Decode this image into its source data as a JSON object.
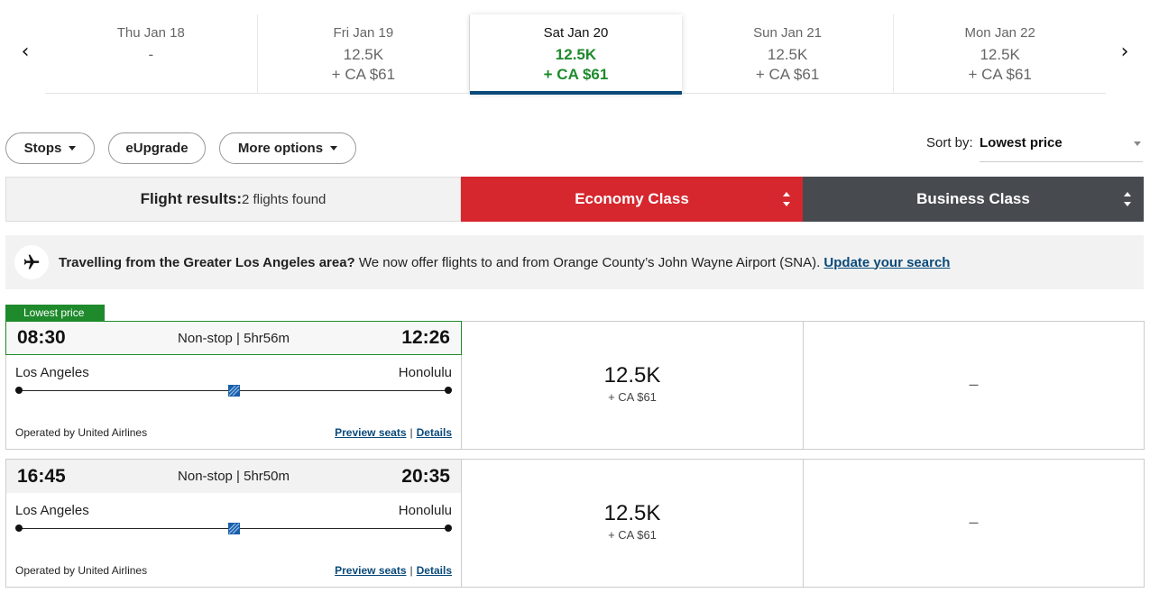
{
  "dates": [
    {
      "day": "Thu Jan 18",
      "price": "-",
      "fee": ""
    },
    {
      "day": "Fri Jan 19",
      "price": "12.5K",
      "fee": "+ CA $61"
    },
    {
      "day": "Sat Jan 20",
      "price": "12.5K",
      "fee": "+ CA $61"
    },
    {
      "day": "Sun Jan 21",
      "price": "12.5K",
      "fee": "+ CA $61"
    },
    {
      "day": "Mon Jan 22",
      "price": "12.5K",
      "fee": "+ CA $61"
    }
  ],
  "nav": {
    "prev": "‹",
    "next": "›"
  },
  "filters": {
    "stops": "Stops",
    "eupgrade": "eUpgrade",
    "more": "More options"
  },
  "sort": {
    "label": "Sort by:",
    "value": "Lowest price"
  },
  "results": {
    "label": "Flight results:",
    "count": "2 flights found"
  },
  "classes": {
    "economy": "Economy Class",
    "business": "Business Class"
  },
  "banner": {
    "bold": "Travelling from the Greater Los Angeles area?",
    "text": " We now offer flights to and from Orange County’s John Wayne Airport (SNA). ",
    "link": "Update your search"
  },
  "lowest_tag": "Lowest price",
  "flights": [
    {
      "depart": "08:30",
      "arrive": "12:26",
      "summary": "Non-stop | 5hr56m",
      "from": "Los Angeles",
      "to": "Honolulu",
      "operator": "Operated by United Airlines",
      "preview": "Preview seats",
      "sep": "|",
      "details": "Details",
      "miles": "12.5K",
      "fee": "+ CA $61",
      "business": "–"
    },
    {
      "depart": "16:45",
      "arrive": "20:35",
      "summary": "Non-stop | 5hr50m",
      "from": "Los Angeles",
      "to": "Honolulu",
      "operator": "Operated by United Airlines",
      "preview": "Preview seats",
      "sep": "|",
      "details": "Details",
      "miles": "12.5K",
      "fee": "+ CA $61",
      "business": "–"
    }
  ],
  "colors": {
    "selected_price": "#1e8a2c",
    "economy": "#d6262e",
    "business": "#474b50",
    "link": "#0a4a7a"
  }
}
